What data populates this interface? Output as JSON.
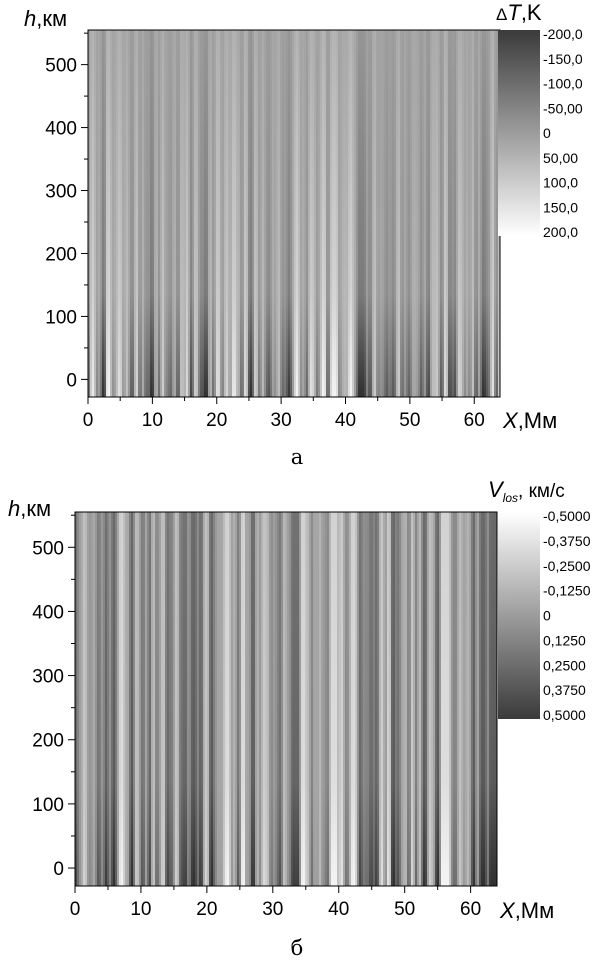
{
  "chart_data": [
    {
      "type": "heatmap",
      "panel_caption": "а",
      "ylabel": {
        "italic": "h",
        "rest": ",км"
      },
      "xlabel": {
        "italic": "X",
        "rest": ",Мм"
      },
      "x_ticks": [
        "0",
        "10",
        "20",
        "30",
        "40",
        "50",
        "60"
      ],
      "y_ticks": [
        "0",
        "100",
        "200",
        "300",
        "400",
        "500"
      ],
      "xlim": [
        0,
        64
      ],
      "ylim": [
        -28,
        555
      ],
      "colorbar": {
        "title": {
          "prefix": "Δ",
          "italic": "T",
          "rest": ",K"
        },
        "labels": [
          "-200,0",
          "-150,0",
          "-100,0",
          "-50,00",
          "0",
          "50,00",
          "100,0",
          "150,0",
          "200,0"
        ],
        "range": [
          -200,
          200
        ],
        "low_color": "#3a3a3a",
        "high_color": "#ffffff"
      },
      "pattern": "vertical stripes, strongest contrast near h = 0",
      "seed": 7
    },
    {
      "type": "heatmap",
      "panel_caption": "б",
      "ylabel": {
        "italic": "h",
        "rest": ",км"
      },
      "xlabel": {
        "italic": "X",
        "rest": ",Мм"
      },
      "x_ticks": [
        "0",
        "10",
        "20",
        "30",
        "40",
        "50",
        "60"
      ],
      "y_ticks": [
        "0",
        "100",
        "200",
        "300",
        "400",
        "500"
      ],
      "xlim": [
        0,
        64
      ],
      "ylim": [
        -28,
        555
      ],
      "colorbar": {
        "title": {
          "italic": "V",
          "sub": "los",
          "rest": ", км/с"
        },
        "labels": [
          "-0,5000",
          "-0,3750",
          "-0,2500",
          "-0,1250",
          "0",
          "0,1250",
          "0,2500",
          "0,3750",
          "0,5000"
        ],
        "range": [
          -0.5,
          0.5
        ],
        "low_color": "#ffffff",
        "high_color": "#3a3a3a"
      },
      "pattern": "fine vertical stripes, uniform with height",
      "seed": 23
    }
  ]
}
